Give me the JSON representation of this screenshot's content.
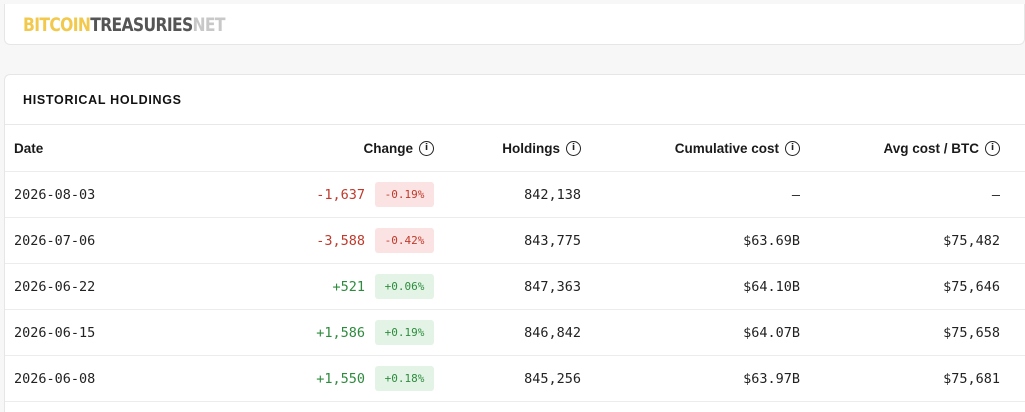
{
  "brand": {
    "part1": "BITCOIN",
    "part2": "TREASURIES",
    "part3": "NET"
  },
  "section": {
    "title": "HISTORICAL HOLDINGS"
  },
  "table": {
    "headers": {
      "date": "Date",
      "change": "Change",
      "holdings": "Holdings",
      "cumulative_cost": "Cumulative cost",
      "avg_cost": "Avg cost / BTC",
      "info_glyph": "i"
    },
    "rows": [
      {
        "date": "2026-08-03",
        "change": "-1,637",
        "change_pct": "-0.19%",
        "direction": "negative",
        "holdings": "842,138",
        "cumulative_cost": "–",
        "avg_cost": "–"
      },
      {
        "date": "2026-07-06",
        "change": "-3,588",
        "change_pct": "-0.42%",
        "direction": "negative",
        "holdings": "843,775",
        "cumulative_cost": "$63.69B",
        "avg_cost": "$75,482"
      },
      {
        "date": "2026-06-22",
        "change": "+521",
        "change_pct": "+0.06%",
        "direction": "positive",
        "holdings": "847,363",
        "cumulative_cost": "$64.10B",
        "avg_cost": "$75,646"
      },
      {
        "date": "2026-06-15",
        "change": "+1,586",
        "change_pct": "+0.19%",
        "direction": "positive",
        "holdings": "846,842",
        "cumulative_cost": "$64.07B",
        "avg_cost": "$75,658"
      },
      {
        "date": "2026-06-08",
        "change": "+1,550",
        "change_pct": "+0.18%",
        "direction": "positive",
        "holdings": "845,256",
        "cumulative_cost": "$63.97B",
        "avg_cost": "$75,681"
      }
    ]
  },
  "colors": {
    "brand_gold": "#f2c94c",
    "negative": "#c0392b",
    "negative_bg": "#fbe3e3",
    "positive": "#2e8b3e",
    "positive_bg": "#e3f4e6"
  }
}
